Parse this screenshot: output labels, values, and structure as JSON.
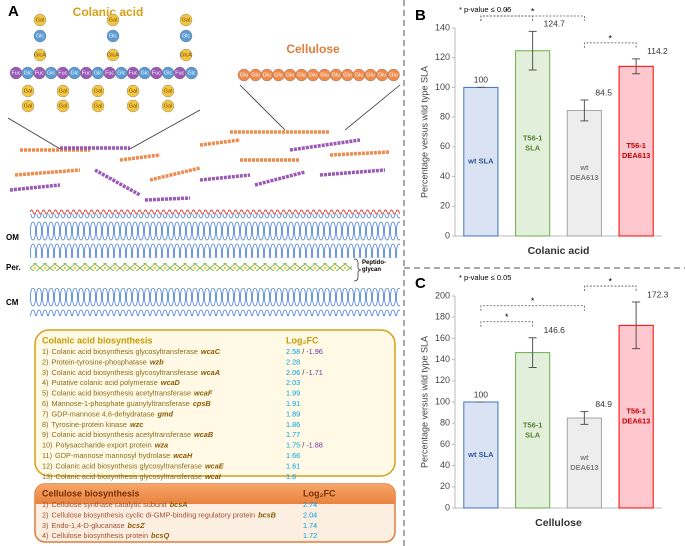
{
  "panel_a": {
    "label": "A",
    "colanic_title": "Colanic acid",
    "cellulose_title": "Cellulose",
    "sugars": {
      "gal": "Gal",
      "glc": "Glc",
      "fuc": "Fuc",
      "glca": "GlcA",
      "glu": "Glu"
    },
    "membrane": {
      "om": "OM",
      "per": "Per.",
      "peptidoglycan": "Peptido-\nglycan",
      "cm": "CM"
    },
    "colanic_table": {
      "title": "Colanic acid biosynthesis",
      "header": "Log₂FC",
      "separator": "/",
      "rows": [
        {
          "num": "1)",
          "text": "Colanic acid biosynthesis glycosyltransferase",
          "gene": "wcaC",
          "fc": [
            2.58,
            -1.96
          ]
        },
        {
          "num": "2)",
          "text": "Protein-tyrosine-phosphatase",
          "gene": "wzb",
          "fc": [
            2.28
          ]
        },
        {
          "num": "3)",
          "text": "Colanic acid biosynthesis glycosyltransferase",
          "gene": "wcaA",
          "fc": [
            2.06,
            -1.71
          ]
        },
        {
          "num": "4)",
          "text": "Putative colanic acid polymerase",
          "gene": "wcaD",
          "fc": [
            2.03
          ]
        },
        {
          "num": "5)",
          "text": "Colanic acid biosynthesis acetyltransferase",
          "gene": "wcaF",
          "fc": [
            1.99
          ]
        },
        {
          "num": "6)",
          "text": "Mannose-1-phosphate guanylyltransferase",
          "gene": "cpsB",
          "fc": [
            1.91
          ]
        },
        {
          "num": "7)",
          "text": "GDP-mannose 4,6-dehydratase",
          "gene": "gmd",
          "fc": [
            1.89
          ]
        },
        {
          "num": "8)",
          "text": "Tyrosine-protein kinase",
          "gene": "wzc",
          "fc": [
            1.86
          ]
        },
        {
          "num": "9)",
          "text": "Colanic acid biosynthesis acetyltransferase",
          "gene": "wcaB",
          "fc": [
            1.77
          ]
        },
        {
          "num": "10)",
          "text": "Polysaccharide export protein",
          "gene": "wza",
          "fc": [
            1.75,
            -1.88
          ]
        },
        {
          "num": "11)",
          "text": "GDP-mannose mannosyl hydrolase",
          "gene": "wcaH",
          "fc": [
            1.66
          ]
        },
        {
          "num": "12)",
          "text": "Colanic acid biosynthesis glycosyltransferase",
          "gene": "wcaE",
          "fc": [
            1.61
          ]
        },
        {
          "num": "13)",
          "text": "Colanic acid biosynthesis glycosyltransferase",
          "gene": "wcaI",
          "fc": [
            1.6
          ]
        }
      ]
    },
    "cellulose_table": {
      "title": "Cellulose biosynthesis",
      "header": "Log₂FC",
      "rows": [
        {
          "num": "1)",
          "text": "Cellulose synthase catalytic subunit",
          "gene": "bcsA",
          "fc": [
            2.74
          ]
        },
        {
          "num": "2)",
          "text": "Cellulose biosynthesis cyclic di-GMP-binding regulatory protein",
          "gene": "bcsB",
          "fc": [
            2.04
          ]
        },
        {
          "num": "3)",
          "text": "Endo-1,4-D-glucanase",
          "gene": "bcsZ",
          "fc": [
            1.74
          ]
        },
        {
          "num": "4)",
          "text": "Cellulose biosynthesis protein",
          "gene": "bcsQ",
          "fc": [
            1.72
          ]
        }
      ]
    }
  },
  "chart_data": [
    {
      "type": "bar",
      "panel": "B",
      "xlabel": "Colanic acid",
      "ylabel": "Percentage versus wild type SLA",
      "legend_note": "* p-value ≤ 0.05",
      "categories": [
        [
          "wt SLA"
        ],
        [
          "T56-1",
          "SLA"
        ],
        [
          "wt",
          "DEA613"
        ],
        [
          "T56-1",
          "DEA613"
        ]
      ],
      "values": [
        100,
        124.7,
        84.5,
        114.2
      ],
      "errors": [
        0,
        13,
        7,
        5
      ],
      "colors": [
        "#dae3f3",
        "#e2efda",
        "#ededed",
        "#ffc7ce"
      ],
      "edge_colors": [
        "#4472c4",
        "#70ad47",
        "#a5a5a5",
        "#ff0000"
      ],
      "label_colors": [
        "#2f5597",
        "#548235",
        "#7f7f7f",
        "#c00000"
      ],
      "ylim": [
        0,
        140
      ],
      "yticks": [
        0,
        20,
        40,
        60,
        80,
        100,
        120,
        140
      ],
      "grid": false,
      "significance": [
        {
          "from": 0,
          "to": 1,
          "label": "*"
        },
        {
          "from": 0,
          "to": 2,
          "label": "*"
        },
        {
          "from": 2,
          "to": 3,
          "label": "*"
        }
      ]
    },
    {
      "type": "bar",
      "panel": "C",
      "xlabel": "Cellulose",
      "ylabel": "Percentage versus wild type SLA",
      "legend_note": "* p-value ≤ 0.05",
      "categories": [
        [
          "wt SLA"
        ],
        [
          "T56-1",
          "SLA"
        ],
        [
          "wt",
          "DEA613"
        ],
        [
          "T56-1",
          "DEA613"
        ]
      ],
      "values": [
        100,
        146.6,
        84.9,
        172.3
      ],
      "errors": [
        0,
        14,
        6,
        22
      ],
      "colors": [
        "#dae3f3",
        "#e2efda",
        "#ededed",
        "#ffc7ce"
      ],
      "edge_colors": [
        "#4472c4",
        "#70ad47",
        "#a5a5a5",
        "#ff0000"
      ],
      "label_colors": [
        "#2f5597",
        "#548235",
        "#7f7f7f",
        "#c00000"
      ],
      "ylim": [
        0,
        200
      ],
      "yticks": [
        0,
        20,
        40,
        60,
        80,
        100,
        120,
        140,
        160,
        180,
        200
      ],
      "grid": false,
      "significance": [
        {
          "from": 0,
          "to": 1,
          "label": "*"
        },
        {
          "from": 0,
          "to": 2,
          "label": "*"
        },
        {
          "from": 2,
          "to": 3,
          "label": "*"
        }
      ]
    }
  ]
}
